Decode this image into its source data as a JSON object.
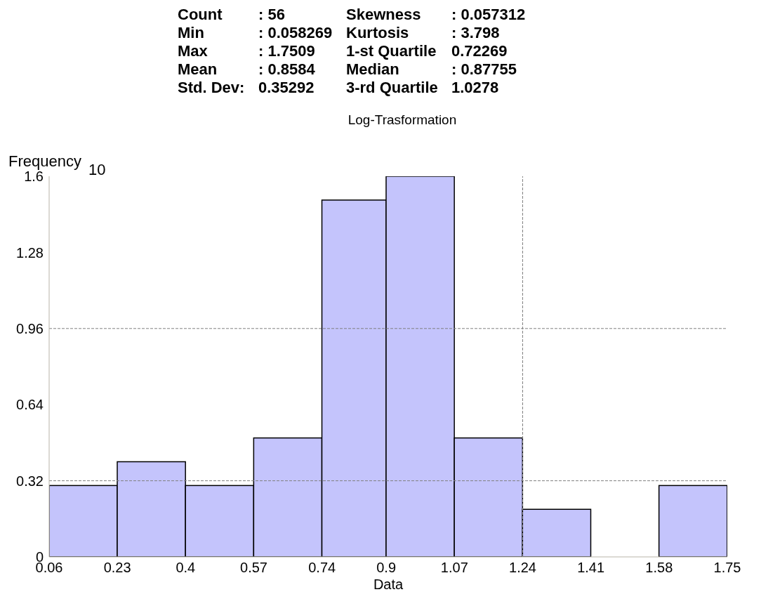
{
  "chart_data": {
    "type": "histogram",
    "title": "Log-Trasformation",
    "xlabel": "Data",
    "ylabel": "Frequency",
    "annotations": [
      "Count",
      ": 56",
      "Skewness",
      ": 0.057312",
      "Min",
      ": 0.058269",
      "Kurtosis",
      ": 3.798",
      "Max",
      ": 1.7509",
      "1-st Quartile",
      "0.72269",
      "Mean",
      ": 0.8584",
      "Median",
      ": 0.87755",
      "Std. Dev:",
      "0.35292",
      "3-rd Quartile",
      "1.0278",
      "10"
    ],
    "bins": [
      0.06,
      0.23,
      0.4,
      0.57,
      0.74,
      0.9,
      1.07,
      1.24,
      1.41,
      1.58,
      1.75
    ],
    "values": [
      0.3,
      0.4,
      0.3,
      0.5,
      1.5,
      1.6,
      0.5,
      0.2,
      0,
      0.3
    ],
    "color": "#c4c4fc",
    "xlim": [
      0.06,
      1.75
    ],
    "xticks": [
      0.06,
      0.23,
      0.4,
      0.57,
      0.74,
      0.9,
      1.07,
      1.24,
      1.41,
      1.58,
      1.75
    ],
    "ylim": [
      0,
      1.6
    ],
    "yticks": [
      0,
      0.32,
      0.64,
      0.96,
      1.28,
      1.6
    ],
    "ref_lines": [
      {
        "axis": "y",
        "value": 0.32,
        "color": "#808080",
        "line_style": "dashed"
      },
      {
        "axis": "y",
        "value": 0.96,
        "color": "#808080",
        "line_style": "dashed"
      },
      {
        "axis": "x",
        "value": 1.24,
        "color": "#808080",
        "line_style": "dashed"
      }
    ]
  }
}
